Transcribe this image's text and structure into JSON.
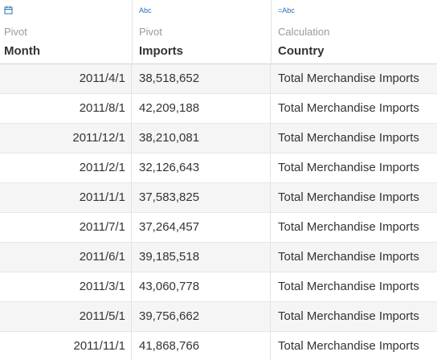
{
  "columns": [
    {
      "key": "month",
      "type_icon": "calendar-icon",
      "source": "Pivot",
      "name": "Month"
    },
    {
      "key": "imports",
      "type_icon": "Abc",
      "source": "Pivot",
      "name": "Imports"
    },
    {
      "key": "country",
      "type_icon": "=Abc",
      "source": "Calculation",
      "name": "Country"
    }
  ],
  "rows": [
    {
      "month": "2011/4/1",
      "imports": "38,518,652",
      "country": "Total Merchandise Imports"
    },
    {
      "month": "2011/8/1",
      "imports": "42,209,188",
      "country": "Total Merchandise Imports"
    },
    {
      "month": "2011/12/1",
      "imports": "38,210,081",
      "country": "Total Merchandise Imports"
    },
    {
      "month": "2011/2/1",
      "imports": "32,126,643",
      "country": "Total Merchandise Imports"
    },
    {
      "month": "2011/1/1",
      "imports": "37,583,825",
      "country": "Total Merchandise Imports"
    },
    {
      "month": "2011/7/1",
      "imports": "37,264,457",
      "country": "Total Merchandise Imports"
    },
    {
      "month": "2011/6/1",
      "imports": "39,185,518",
      "country": "Total Merchandise Imports"
    },
    {
      "month": "2011/3/1",
      "imports": "43,060,778",
      "country": "Total Merchandise Imports"
    },
    {
      "month": "2011/5/1",
      "imports": "39,756,662",
      "country": "Total Merchandise Imports"
    },
    {
      "month": "2011/11/1",
      "imports": "41,868,766",
      "country": "Total Merchandise Imports"
    }
  ],
  "colors": {
    "type_icon": "#2a6fb0",
    "row_alt": "#f5f5f5",
    "text": "#333333",
    "muted": "#9a9a9a"
  }
}
